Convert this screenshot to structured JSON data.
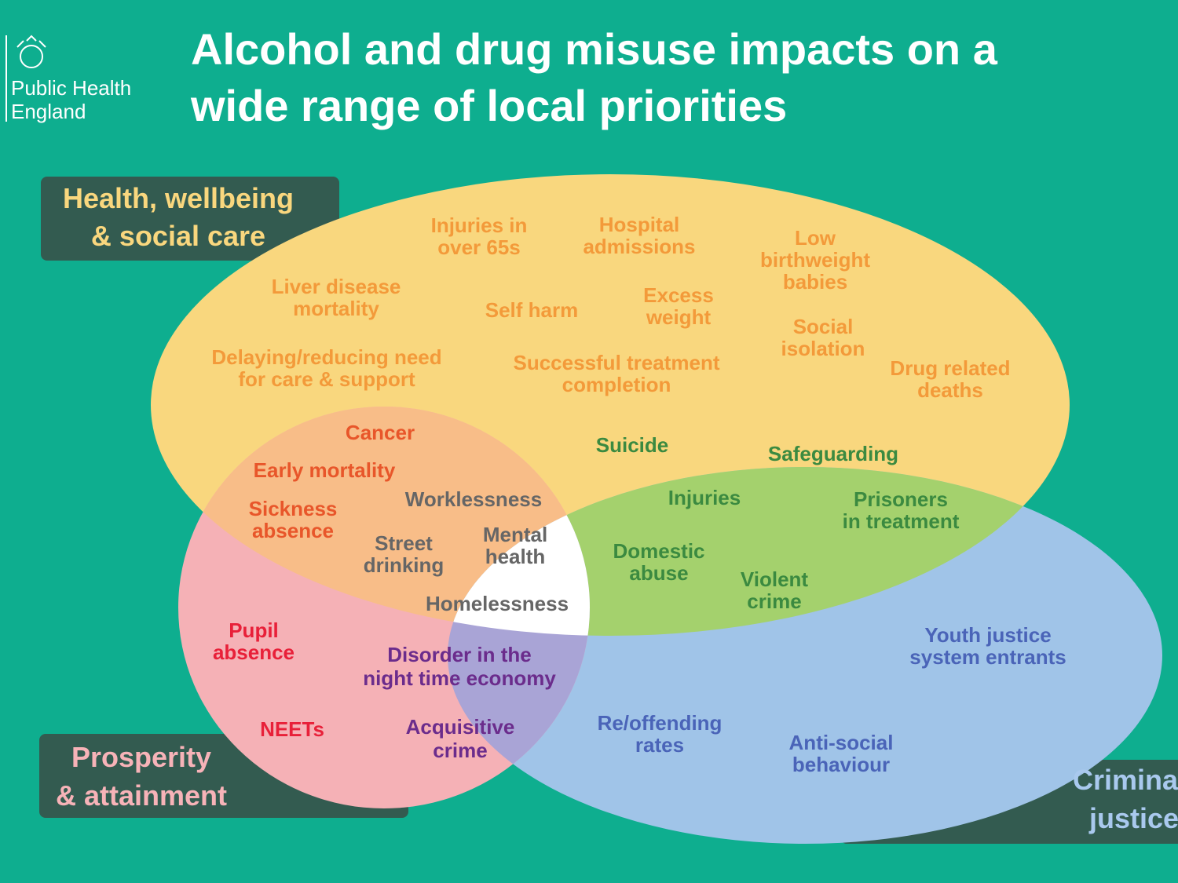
{
  "header": {
    "logo": [
      "Public Health",
      "England"
    ],
    "title": [
      "Alcohol and drug misuse impacts on a",
      "wide range of local priorities"
    ]
  },
  "sets": [
    {
      "label": [
        "Health, wellbeing",
        "& social care"
      ]
    },
    {
      "label": [
        "Prosperity",
        "& attainment"
      ]
    },
    {
      "label": [
        "Criminal",
        "justice"
      ]
    }
  ],
  "regions": [
    {
      "items": [
        [
          "Injuries in",
          "over 65s"
        ],
        [
          "Hospital",
          "admissions"
        ],
        [
          "Low",
          "birthweight",
          "babies"
        ],
        [
          "Liver disease",
          "mortality"
        ],
        [
          "Self harm"
        ],
        [
          "Excess",
          "weight"
        ],
        [
          "Social",
          "isolation"
        ],
        [
          "Delaying/reducing need",
          "for care & support"
        ],
        [
          "Successful treatment",
          "completion"
        ],
        [
          "Drug related",
          "deaths"
        ]
      ]
    },
    {
      "items": [
        [
          "Cancer"
        ],
        [
          "Early mortality"
        ],
        [
          "Sickness",
          "absence"
        ]
      ]
    },
    {
      "items": [
        [
          "Worklessness"
        ],
        [
          "Street",
          "drinking"
        ],
        [
          "Mental",
          "health"
        ],
        [
          "Homelessness"
        ]
      ]
    },
    {
      "items": [
        [
          "Suicide"
        ],
        [
          "Safeguarding"
        ],
        [
          "Injuries"
        ],
        [
          "Prisoners",
          "in treatment"
        ],
        [
          "Domestic",
          "abuse"
        ],
        [
          "Violent",
          "crime"
        ]
      ]
    },
    {
      "items": [
        [
          "Pupil",
          "absence"
        ],
        [
          "NEETs"
        ]
      ]
    },
    {
      "items": [
        [
          "Disorder in the",
          "night time economy"
        ],
        [
          "Acquisitive",
          "crime"
        ]
      ]
    },
    {
      "items": [
        [
          "Youth justice",
          "system entrants"
        ],
        [
          "Re/offending",
          "rates"
        ],
        [
          "Anti-social",
          "behaviour"
        ]
      ]
    }
  ]
}
